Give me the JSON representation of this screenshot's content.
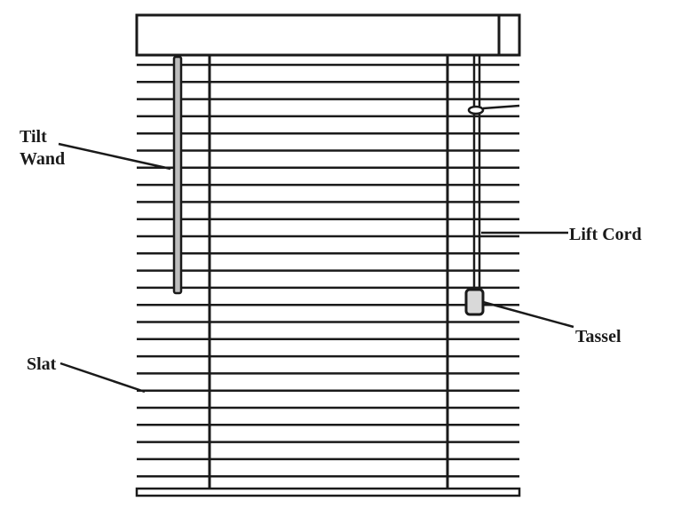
{
  "diagram": {
    "labels": {
      "tilt": "Tilt",
      "wand": "Wand",
      "lift_cord": "Lift Cord",
      "tassel": "Tassel",
      "slat": "Slat"
    },
    "colors": {
      "stroke": "#1a1a1a",
      "background": "#ffffff",
      "tassel_fill": "#d9d9d9"
    }
  }
}
